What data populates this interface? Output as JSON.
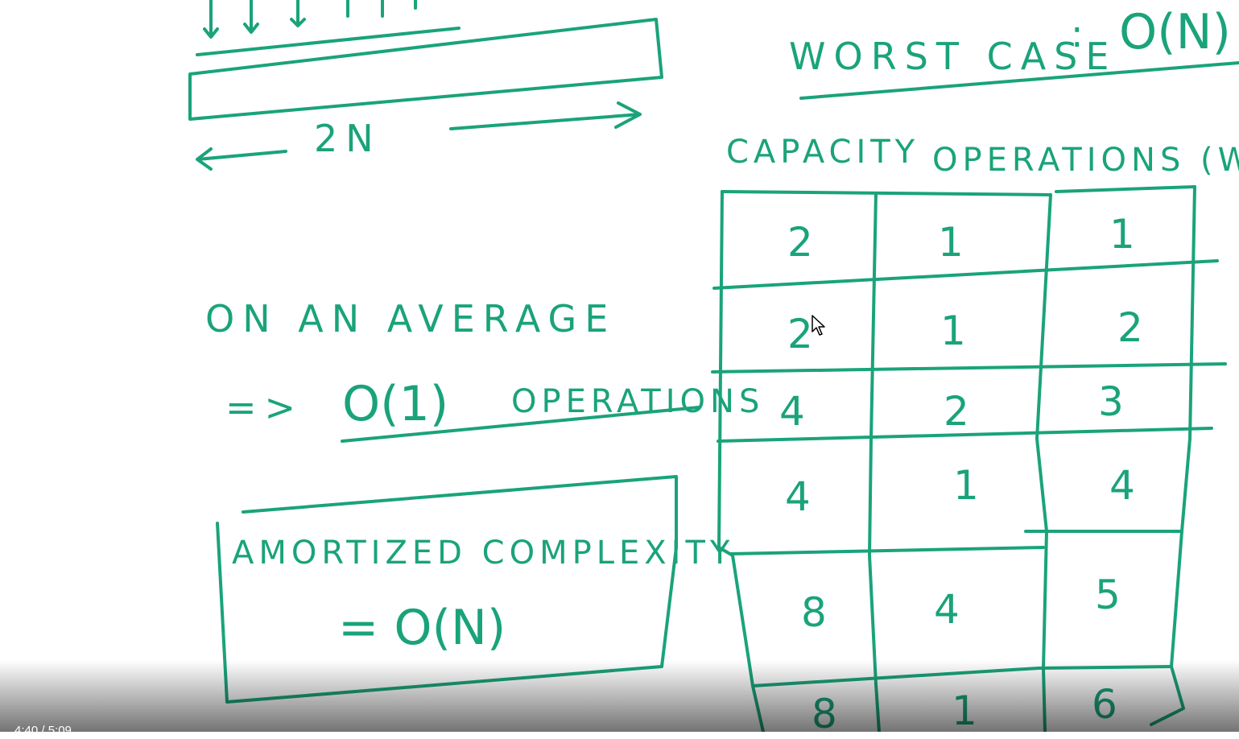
{
  "board": {
    "ink_color": "#1aa37a",
    "top_diagram": {
      "length_label": "2N"
    },
    "worst_case": {
      "label": "WORST CASE",
      "separator": ":",
      "value": "O(N)"
    },
    "average": {
      "line1": "ON AN AVERAGE",
      "arrow": "=>",
      "complexity": "O(1)",
      "unit": "OPERATIONS"
    },
    "amortized_box": {
      "title": "AMORTIZED COMPLEXITY",
      "value": "= O(N)"
    },
    "table": {
      "headers": [
        "CAPACITY",
        "OPERATIONS (WHE"
      ],
      "rows": [
        [
          "2",
          "1",
          "1"
        ],
        [
          "2",
          "1",
          "2"
        ],
        [
          "4",
          "2",
          "3"
        ],
        [
          "4",
          "1",
          "4"
        ],
        [
          "8",
          "4",
          "5"
        ],
        [
          "8",
          "1",
          "6"
        ]
      ]
    }
  },
  "player": {
    "time_display": "4:40 / 5:09",
    "cursor_icon": "pointer-cursor-icon"
  }
}
